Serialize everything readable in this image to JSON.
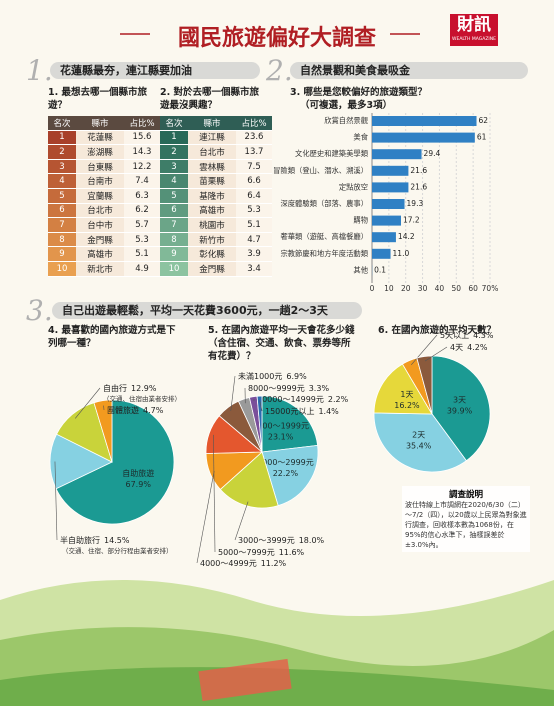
{
  "title": "國民旅遊偏好大調查",
  "logo": {
    "text": "財訊",
    "subtext": "WEALTH MAGAZINE"
  },
  "sections": [
    {
      "number": "1.",
      "title": "花蓮縣最夯，連江縣要加油"
    },
    {
      "number": "2.",
      "title": "自然景觀和美食最吸金"
    },
    {
      "number": "3.",
      "title": "自己出遊最輕鬆，平均一天花費3600元，一趟2～3天"
    }
  ],
  "tables": [
    {
      "title": "1. 最想去哪一個縣市旅遊？",
      "headers": [
        "名次",
        "縣市",
        "占比%"
      ],
      "rows": [
        [
          1,
          "花蓮縣",
          15.6
        ],
        [
          2,
          "澎湖縣",
          14.3
        ],
        [
          3,
          "台東縣",
          12.2
        ],
        [
          4,
          "台南市",
          7.4
        ],
        [
          5,
          "宜蘭縣",
          6.3
        ],
        [
          6,
          "台北市",
          6.2
        ],
        [
          7,
          "台中市",
          5.7
        ],
        [
          8,
          "金門縣",
          5.3
        ],
        [
          9,
          "高雄市",
          5.1
        ],
        [
          10,
          "新北市",
          4.9
        ]
      ]
    },
    {
      "title": "2. 對於去哪一個縣市旅遊最沒興趣？",
      "headers": [
        "名次",
        "縣市",
        "占比%"
      ],
      "rows": [
        [
          1,
          "連江縣",
          23.6
        ],
        [
          2,
          "台北市",
          13.7
        ],
        [
          3,
          "雲林縣",
          7.5
        ],
        [
          4,
          "苗栗縣",
          6.6
        ],
        [
          5,
          "基隆市",
          6.4
        ],
        [
          6,
          "高雄市",
          5.3
        ],
        [
          7,
          "桃園市",
          5.1
        ],
        [
          8,
          "新竹市",
          4.7
        ],
        [
          9,
          "彰化縣",
          3.9
        ],
        [
          10,
          "金門縣",
          3.4
        ]
      ]
    }
  ],
  "chart_data": [
    {
      "type": "bar",
      "orientation": "horizontal",
      "title": "3. 哪些是您較偏好的旅遊類型？",
      "subtitle": "（可複選，最多3項）",
      "categories": [
        "欣賞自然景觀",
        "美食",
        "文化歷史和建築美學類",
        "冒險類（登山、潛水、溯溪）",
        "定點放空",
        "深度體驗類（部落、農事）",
        "購物",
        "奢華類（遊艇、高檔餐廳）",
        "宗教節慶和地方年度活動類",
        "其他"
      ],
      "values": [
        62,
        61,
        29.4,
        21.6,
        21.6,
        19.3,
        17.2,
        14.2,
        11,
        0.1
      ],
      "value_labels": [
        "62",
        "61",
        "29.4",
        "21.6",
        "21.6",
        "19.3",
        "17.2",
        "14.2",
        "11.0",
        "0.1"
      ],
      "color": "#2f80c4",
      "xlim": [
        0,
        70
      ],
      "xticks": [
        0,
        10,
        20,
        30,
        40,
        50,
        60,
        {
          "value": 70,
          "label": "70%"
        }
      ],
      "grid": true
    },
    {
      "type": "pie",
      "title": "4. 最喜歡的國內旅遊方式是下列哪一種？",
      "categories": [
        "自助旅遊",
        "半自助旅行",
        "自由行",
        "團體旅遊"
      ],
      "values": [
        67.9,
        14.5,
        12.9,
        4.7
      ],
      "value_labels": [
        "67.9%",
        "14.5%",
        "12.9%",
        "4.7%"
      ],
      "colors": [
        "#1b9a93",
        "#86d1e2",
        "#c9d33a",
        "#f29a1f"
      ],
      "annotations": [
        "（交通、住宿由業者安排）",
        "（交通、住宿、部分行程由業者安排）"
      ]
    },
    {
      "type": "pie",
      "title": "5. 在國內旅遊平均一天會花多少錢（含住宿、交通、飲食、票券等所有花費）？",
      "categories": [
        "1000～1999元",
        "2000～2999元",
        "3000～3999元",
        "4000～4999元",
        "5000～7999元",
        "未滿1000元",
        "8000～9999元",
        "10000～14999元",
        "15000元以上"
      ],
      "values": [
        23.1,
        22.2,
        18.0,
        11.2,
        11.6,
        6.9,
        3.3,
        2.2,
        1.4
      ],
      "value_labels": [
        "23.1%",
        "22.2%",
        "18.0%",
        "11.2%",
        "11.6%",
        "6.9%",
        "3.3%",
        "2.2%",
        "1.4%"
      ],
      "colors": [
        "#1b9a93",
        "#86d1e2",
        "#c9d33a",
        "#f29a1f",
        "#e4572e",
        "#8b5a3c",
        "#9a9a9a",
        "#7a4f9a",
        "#2b6cb0"
      ]
    },
    {
      "type": "pie",
      "title": "6. 在國內旅遊的平均天數？",
      "categories": [
        "3天",
        "2天",
        "1天",
        "5天以上",
        "4天"
      ],
      "values": [
        39.9,
        35.4,
        16.2,
        4.3,
        4.2
      ],
      "value_labels": [
        "39.9%",
        "35.4%",
        "16.2%",
        "4.3%",
        "4.2%"
      ],
      "colors": [
        "#1b9a93",
        "#86d1e2",
        "#e6d83a",
        "#f29a1f",
        "#8b5a3c"
      ]
    }
  ],
  "note": {
    "title": "調查說明",
    "text": "波仕特線上市調網在2020/6/30（二）～7/2（四），以20歲以上民眾為對象進行調查，回收樣本數為1068份，在95%的信心水準下，抽樣誤差於±3.0%內。"
  }
}
